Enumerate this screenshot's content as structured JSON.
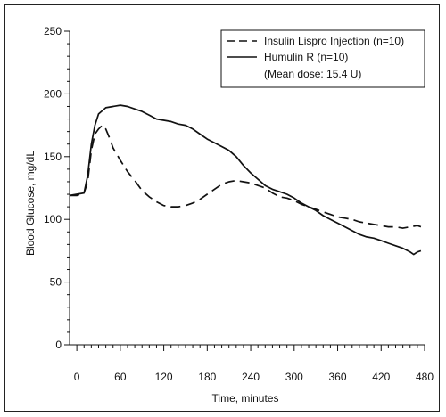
{
  "chart_data": {
    "type": "line",
    "title": "",
    "xlabel": "Time, minutes",
    "ylabel": "Blood Glucose, mg/dL",
    "xlim": [
      -10,
      480
    ],
    "ylim": [
      0,
      250
    ],
    "x_ticks": [
      0,
      60,
      120,
      180,
      240,
      300,
      360,
      420,
      480
    ],
    "y_ticks": [
      0,
      50,
      100,
      150,
      200,
      250
    ],
    "grid": false,
    "legend_position": "top-right",
    "legend_note": "(Mean dose: 15.4 U)",
    "series": [
      {
        "name": "Insulin Lispro Injection (n=10)",
        "style": "dashed",
        "points": [
          [
            -10,
            119
          ],
          [
            0,
            119
          ],
          [
            10,
            121
          ],
          [
            15,
            130
          ],
          [
            20,
            155
          ],
          [
            25,
            168
          ],
          [
            30,
            172
          ],
          [
            35,
            175
          ],
          [
            40,
            172
          ],
          [
            45,
            165
          ],
          [
            50,
            157
          ],
          [
            60,
            147
          ],
          [
            70,
            138
          ],
          [
            80,
            131
          ],
          [
            90,
            123
          ],
          [
            100,
            118
          ],
          [
            110,
            114
          ],
          [
            120,
            111
          ],
          [
            130,
            110
          ],
          [
            140,
            110
          ],
          [
            150,
            111
          ],
          [
            160,
            113
          ],
          [
            170,
            116
          ],
          [
            180,
            120
          ],
          [
            190,
            124
          ],
          [
            200,
            128
          ],
          [
            210,
            130
          ],
          [
            220,
            131
          ],
          [
            230,
            130
          ],
          [
            240,
            129
          ],
          [
            250,
            127
          ],
          [
            260,
            125
          ],
          [
            270,
            121
          ],
          [
            280,
            118
          ],
          [
            290,
            117
          ],
          [
            300,
            115
          ],
          [
            310,
            112
          ],
          [
            320,
            110
          ],
          [
            330,
            108
          ],
          [
            340,
            106
          ],
          [
            350,
            104
          ],
          [
            360,
            102
          ],
          [
            370,
            101
          ],
          [
            380,
            100
          ],
          [
            390,
            98
          ],
          [
            400,
            97
          ],
          [
            410,
            96
          ],
          [
            420,
            95
          ],
          [
            430,
            94
          ],
          [
            440,
            94
          ],
          [
            450,
            93
          ],
          [
            460,
            94
          ],
          [
            470,
            95
          ],
          [
            475,
            94
          ]
        ]
      },
      {
        "name": "Humulin R (n=10)",
        "style": "solid",
        "points": [
          [
            -10,
            119
          ],
          [
            0,
            120
          ],
          [
            10,
            121
          ],
          [
            15,
            135
          ],
          [
            20,
            160
          ],
          [
            25,
            175
          ],
          [
            30,
            184
          ],
          [
            40,
            189
          ],
          [
            50,
            190
          ],
          [
            60,
            191
          ],
          [
            70,
            190
          ],
          [
            80,
            188
          ],
          [
            90,
            186
          ],
          [
            100,
            183
          ],
          [
            110,
            180
          ],
          [
            120,
            179
          ],
          [
            130,
            178
          ],
          [
            140,
            176
          ],
          [
            150,
            175
          ],
          [
            160,
            172
          ],
          [
            170,
            168
          ],
          [
            180,
            164
          ],
          [
            190,
            161
          ],
          [
            200,
            158
          ],
          [
            210,
            155
          ],
          [
            220,
            150
          ],
          [
            230,
            143
          ],
          [
            240,
            137
          ],
          [
            250,
            132
          ],
          [
            260,
            127
          ],
          [
            270,
            124
          ],
          [
            280,
            122
          ],
          [
            290,
            120
          ],
          [
            300,
            117
          ],
          [
            310,
            113
          ],
          [
            320,
            110
          ],
          [
            330,
            107
          ],
          [
            340,
            103
          ],
          [
            350,
            100
          ],
          [
            360,
            97
          ],
          [
            370,
            94
          ],
          [
            380,
            91
          ],
          [
            390,
            88
          ],
          [
            400,
            86
          ],
          [
            410,
            85
          ],
          [
            420,
            83
          ],
          [
            430,
            81
          ],
          [
            440,
            79
          ],
          [
            450,
            77
          ],
          [
            460,
            74
          ],
          [
            465,
            72
          ],
          [
            470,
            74
          ],
          [
            475,
            75
          ]
        ]
      }
    ]
  }
}
